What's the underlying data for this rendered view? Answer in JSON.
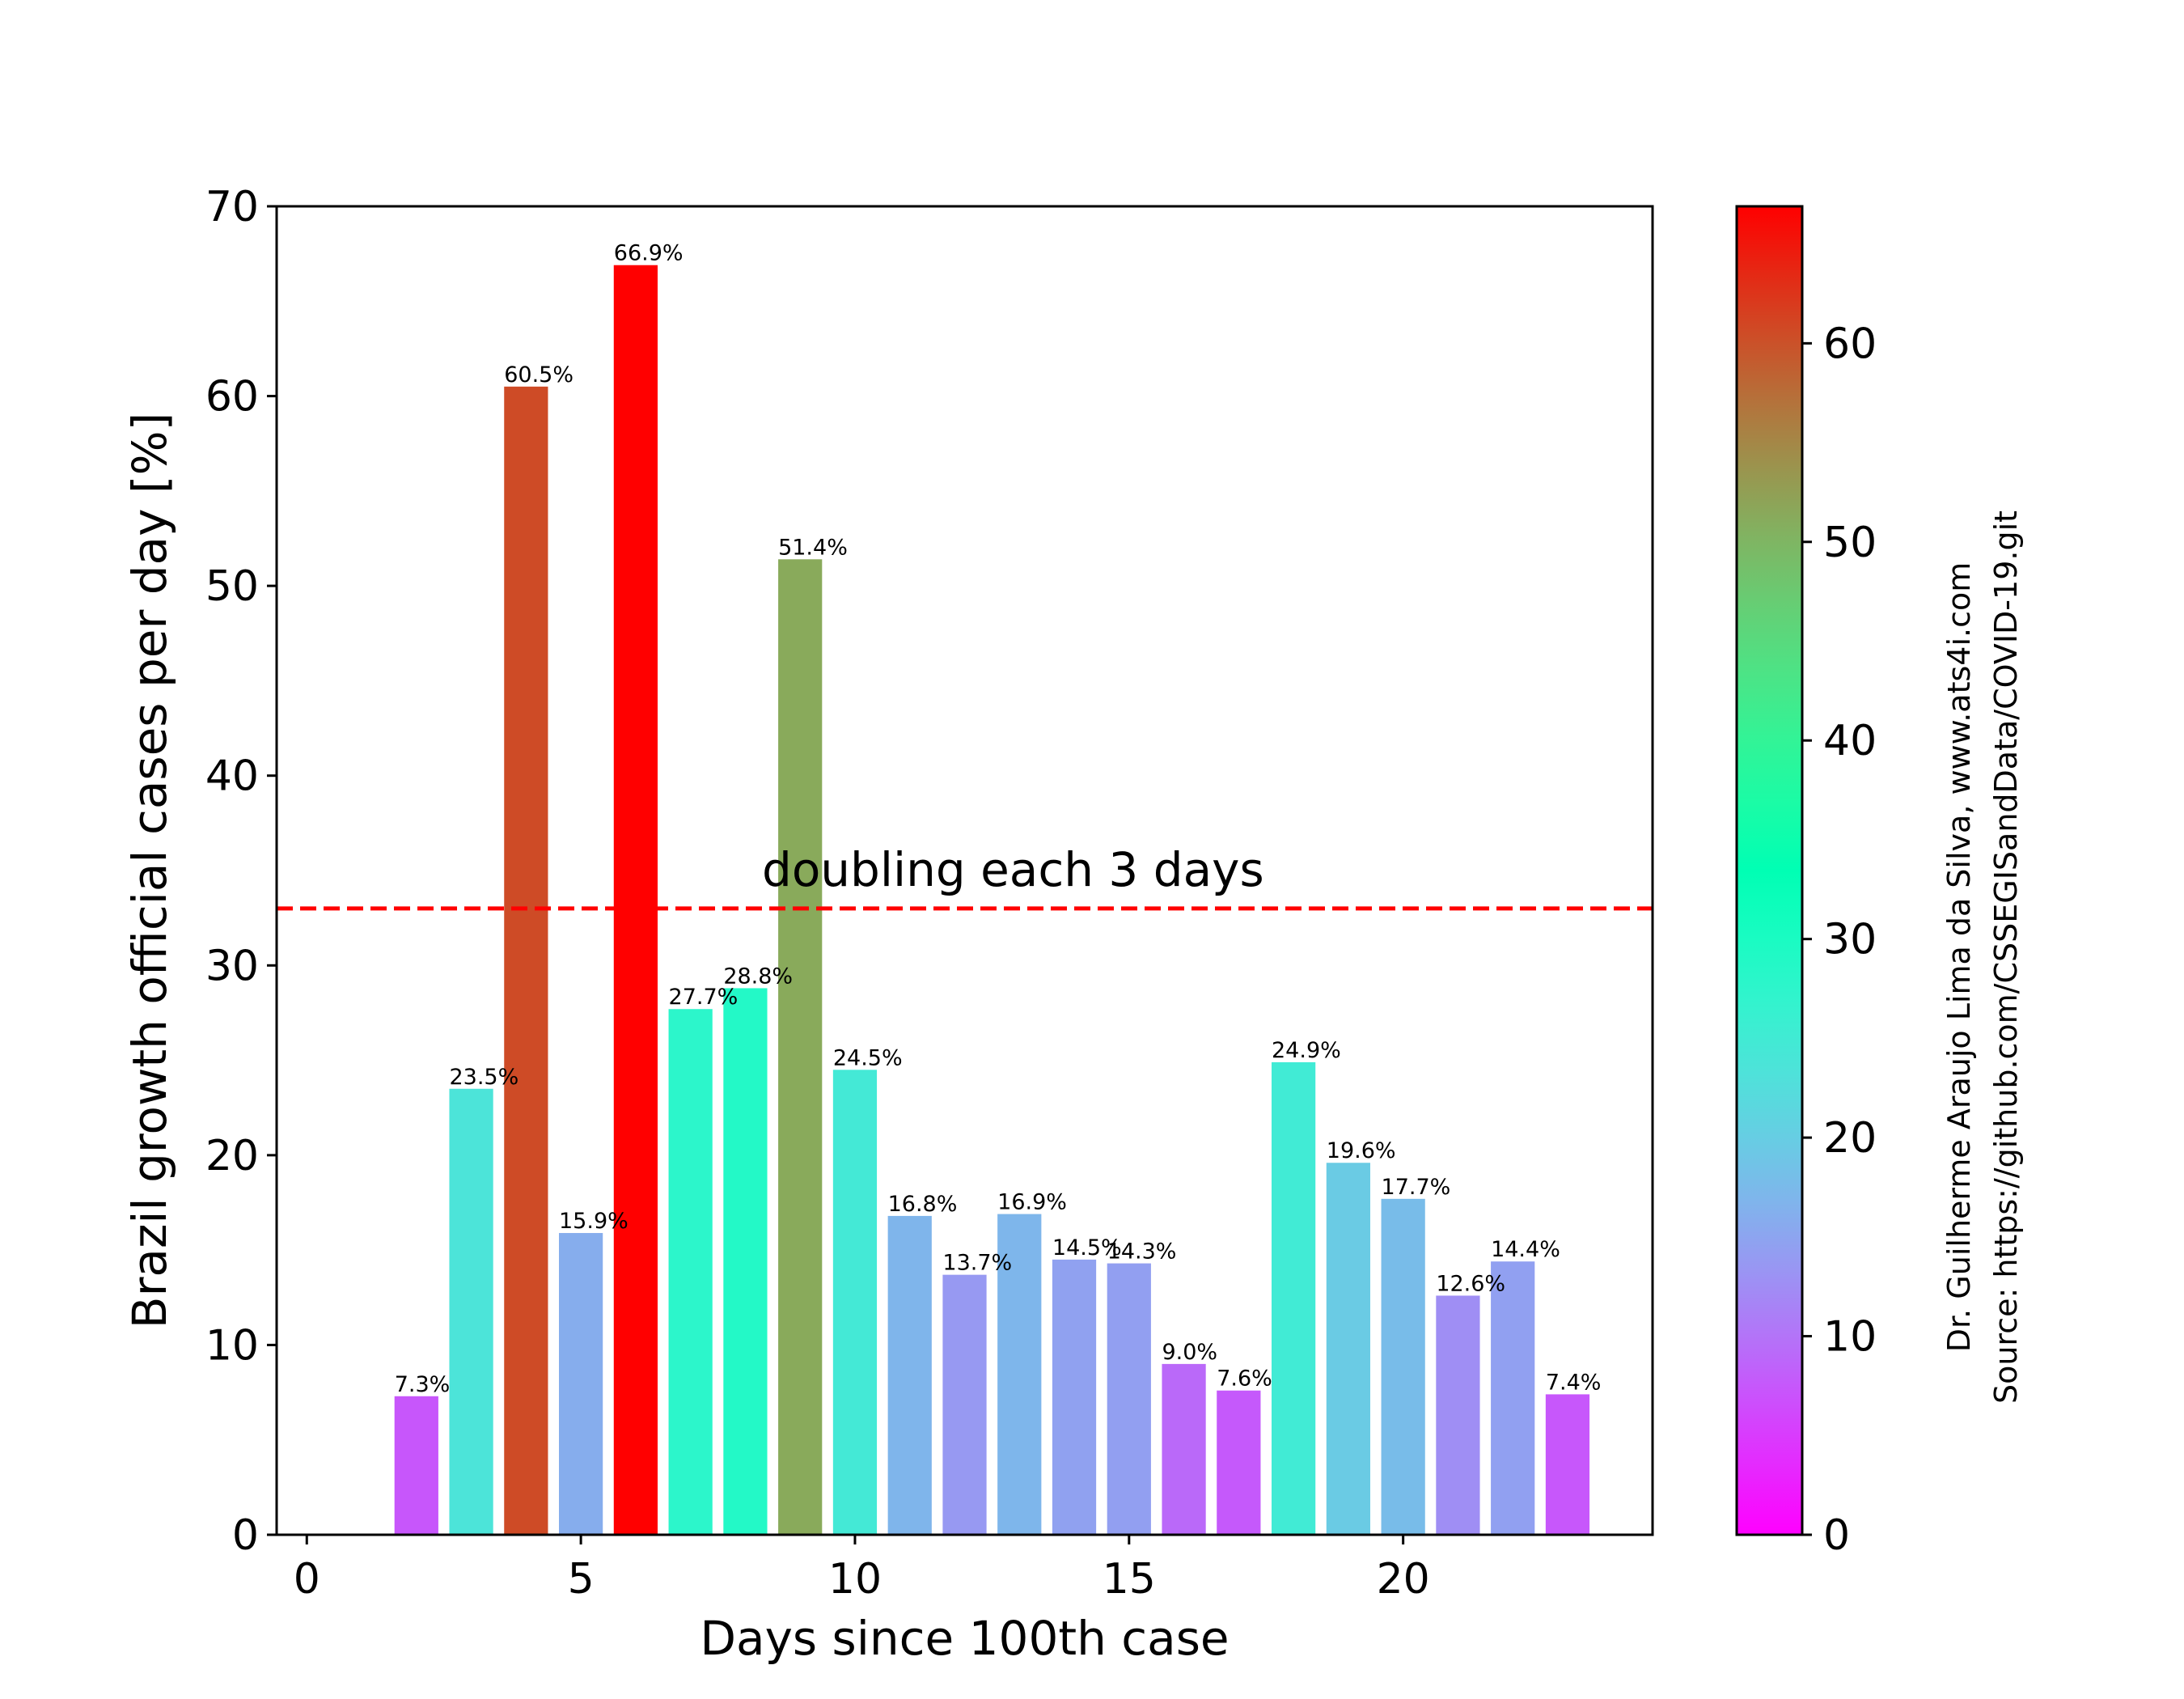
{
  "chart_data": {
    "type": "bar",
    "title": "",
    "xlabel": "Days since 100th case",
    "ylabel": "Brazil growth official cases per day [%]",
    "xlim": [
      -0.55,
      24.55
    ],
    "ylim": [
      0,
      70
    ],
    "x_ticks": [
      0,
      5,
      10,
      15,
      20
    ],
    "y_ticks": [
      0,
      10,
      20,
      30,
      40,
      50,
      60,
      70
    ],
    "x": [
      2,
      3,
      4,
      5,
      6,
      7,
      8,
      9,
      10,
      11,
      12,
      13,
      14,
      15,
      16,
      17,
      18,
      19,
      20,
      21,
      22,
      23
    ],
    "values": [
      7.3,
      23.5,
      60.5,
      15.9,
      66.9,
      27.7,
      28.8,
      51.4,
      24.5,
      16.8,
      13.7,
      16.9,
      14.5,
      14.3,
      9.0,
      7.6,
      24.9,
      19.6,
      17.7,
      12.6,
      14.4,
      7.4
    ],
    "value_labels": [
      "7.3%",
      "23.5%",
      "60.5%",
      "15.9%",
      "66.9%",
      "27.7%",
      "28.8%",
      "51.4%",
      "24.5%",
      "16.8%",
      "13.7%",
      "16.9%",
      "14.5%",
      "14.3%",
      "9.0%",
      "7.6%",
      "24.9%",
      "19.6%",
      "17.7%",
      "12.6%",
      "14.4%",
      "7.4%"
    ],
    "colormap": "rainbow",
    "color_range": [
      0,
      66.9
    ],
    "colorbar_ticks": [
      0,
      10,
      20,
      30,
      40,
      50,
      60
    ],
    "reference_line": {
      "y": 33,
      "label": "doubling each 3 days",
      "color": "#ff0000",
      "style": "dashed"
    },
    "grid": false,
    "credit_lines": [
      "Dr. Guilherme Araujo Lima da Silva, www.ats4i.com",
      "Source: https://github.com/CSSEGISandData/COVID-19.git"
    ]
  }
}
